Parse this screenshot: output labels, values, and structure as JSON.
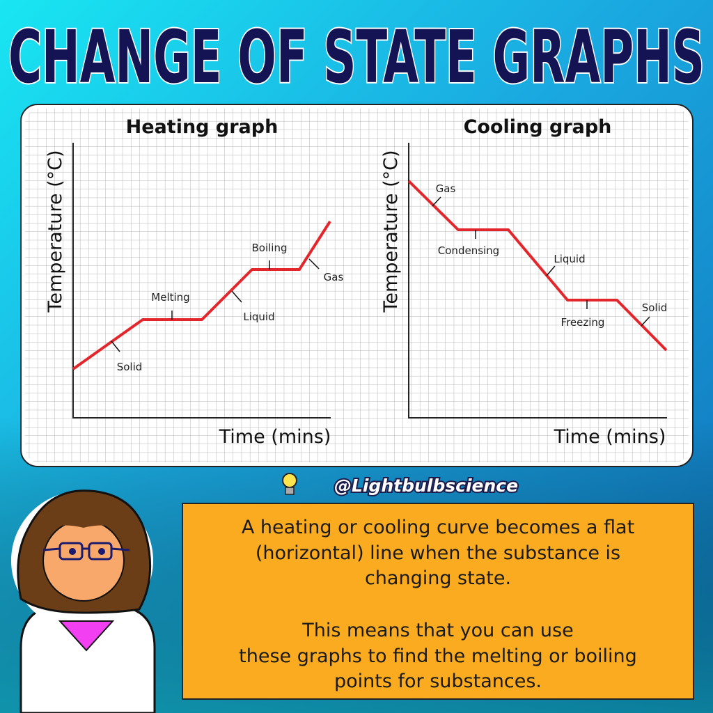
{
  "title": "CHANGE OF STATE GRAPHS",
  "graphs": [
    {
      "title": "Heating graph",
      "y_label": "Temperature (°C)",
      "x_label": "Time (mins)",
      "labels": [
        "Solid",
        "Melting",
        "Liquid",
        "Boiling",
        "Gas"
      ]
    },
    {
      "title": "Cooling graph",
      "y_label": "Temperature (°C)",
      "x_label": "Time (mins)",
      "labels": [
        "Gas",
        "Condensing",
        "Liquid",
        "Freezing",
        "Solid"
      ]
    }
  ],
  "handle": "@Lightbulbscience",
  "note": {
    "lines": [
      "A heating or cooling curve becomes a flat",
      "(horizontal) line when the substance is",
      "changing state.",
      "This means that you can use",
      "these graphs to find the melting or boiling",
      "points for substances."
    ]
  }
}
